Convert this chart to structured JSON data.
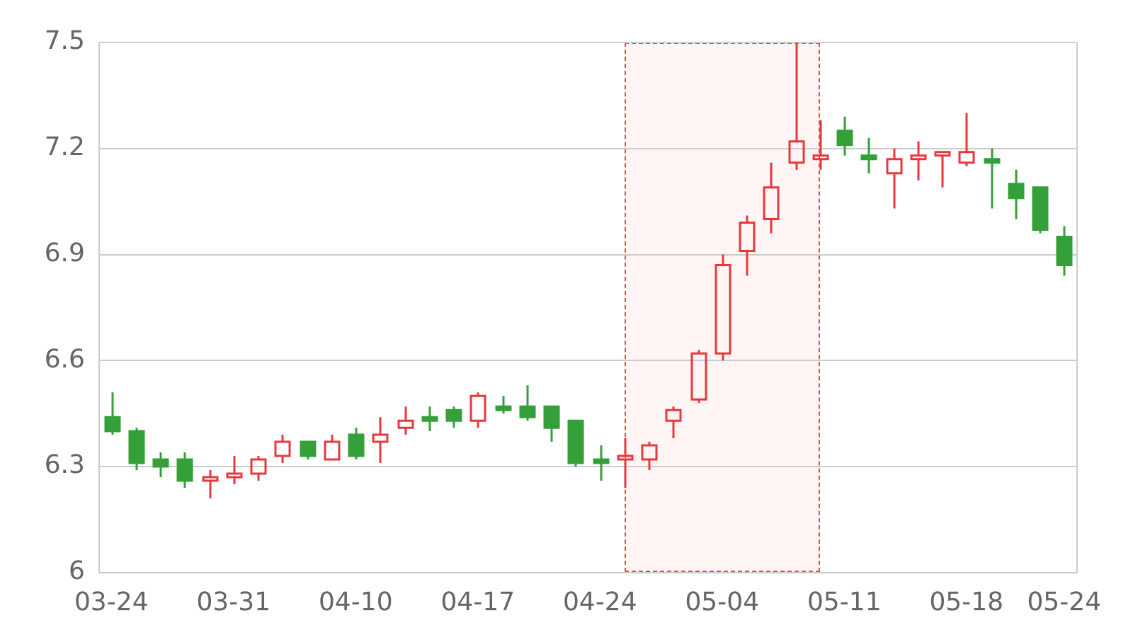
{
  "chart_data": {
    "type": "candlestick",
    "categories": [
      "03-24",
      null,
      null,
      null,
      null,
      "03-31",
      null,
      null,
      null,
      null,
      "04-10",
      null,
      null,
      null,
      null,
      "04-17",
      null,
      null,
      null,
      null,
      "04-24",
      null,
      null,
      null,
      null,
      "05-04",
      null,
      null,
      null,
      null,
      "05-11",
      null,
      null,
      null,
      null,
      "05-18",
      null,
      null,
      null,
      "05-24"
    ],
    "ohlc": [
      [
        6.44,
        6.51,
        6.39,
        6.4
      ],
      [
        6.4,
        6.41,
        6.29,
        6.31
      ],
      [
        6.32,
        6.34,
        6.27,
        6.3
      ],
      [
        6.32,
        6.34,
        6.24,
        6.26
      ],
      [
        6.26,
        6.29,
        6.21,
        6.27
      ],
      [
        6.27,
        6.33,
        6.25,
        6.28
      ],
      [
        6.28,
        6.33,
        6.26,
        6.32
      ],
      [
        6.33,
        6.39,
        6.31,
        6.37
      ],
      [
        6.37,
        6.37,
        6.32,
        6.33
      ],
      [
        6.32,
        6.39,
        6.32,
        6.37
      ],
      [
        6.39,
        6.41,
        6.32,
        6.33
      ],
      [
        6.37,
        6.44,
        6.31,
        6.39
      ],
      [
        6.41,
        6.47,
        6.39,
        6.43
      ],
      [
        6.44,
        6.47,
        6.4,
        6.43
      ],
      [
        6.46,
        6.47,
        6.41,
        6.43
      ],
      [
        6.43,
        6.51,
        6.41,
        6.5
      ],
      [
        6.47,
        6.5,
        6.45,
        6.46
      ],
      [
        6.47,
        6.53,
        6.43,
        6.44
      ],
      [
        6.47,
        6.47,
        6.37,
        6.41
      ],
      [
        6.43,
        6.43,
        6.3,
        6.31
      ],
      [
        6.32,
        6.36,
        6.26,
        6.31
      ],
      [
        6.32,
        6.38,
        6.24,
        6.33
      ],
      [
        6.32,
        6.37,
        6.29,
        6.36
      ],
      [
        6.43,
        6.47,
        6.38,
        6.46
      ],
      [
        6.49,
        6.63,
        6.48,
        6.62
      ],
      [
        6.62,
        6.9,
        6.6,
        6.87
      ],
      [
        6.91,
        7.01,
        6.84,
        6.99
      ],
      [
        7.0,
        7.16,
        6.96,
        7.09
      ],
      [
        7.16,
        7.5,
        7.14,
        7.22
      ],
      [
        7.17,
        7.28,
        7.14,
        7.18
      ],
      [
        7.25,
        7.29,
        7.18,
        7.21
      ],
      [
        7.18,
        7.23,
        7.13,
        7.17
      ],
      [
        7.13,
        7.2,
        7.03,
        7.17
      ],
      [
        7.17,
        7.22,
        7.11,
        7.18
      ],
      [
        7.18,
        7.19,
        7.09,
        7.19
      ],
      [
        7.16,
        7.3,
        7.15,
        7.19
      ],
      [
        7.17,
        7.2,
        7.03,
        7.16
      ],
      [
        7.1,
        7.14,
        7.0,
        7.06
      ],
      [
        7.09,
        7.09,
        6.96,
        6.97
      ],
      [
        6.95,
        6.98,
        6.84,
        6.87
      ]
    ],
    "colors": [
      "#35a03a",
      "#35a03a",
      "#35a03a",
      "#35a03a",
      "#e8383d",
      "#e8383d",
      "#e8383d",
      "#e8383d",
      "#35a03a",
      "#e8383d",
      "#35a03a",
      "#e8383d",
      "#e8383d",
      "#35a03a",
      "#35a03a",
      "#e8383d",
      "#35a03a",
      "#35a03a",
      "#35a03a",
      "#35a03a",
      "#35a03a",
      "#e8383d",
      "#e8383d",
      "#e8383d",
      "#e8383d",
      "#e8383d",
      "#e8383d",
      "#e8383d",
      "#e8383d",
      "#e8383d",
      "#35a03a",
      "#35a03a",
      "#e8383d",
      "#e8383d",
      "#e8383d",
      "#e8383d",
      "#35a03a",
      "#35a03a",
      "#35a03a",
      "#35a03a"
    ],
    "ylim": [
      6,
      7.5
    ],
    "yticks": [
      6,
      6.3,
      6.6,
      6.9,
      7.2,
      7.5
    ],
    "grid": "y"
  }
}
